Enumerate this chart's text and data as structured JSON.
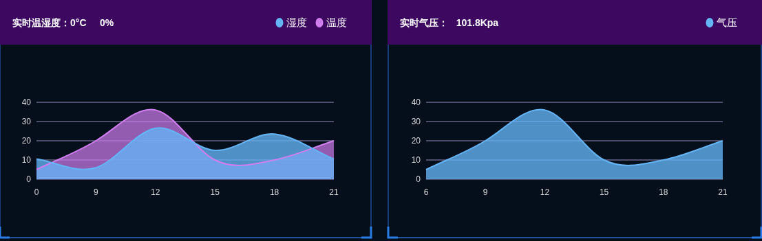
{
  "chart_data": [
    {
      "type": "area",
      "title": "实时温湿度：0°C     0%",
      "categories": [
        "0",
        "9",
        "12",
        "15",
        "18",
        "21"
      ],
      "ylim": [
        0,
        40
      ],
      "yticks": [
        0,
        10,
        20,
        30,
        40
      ],
      "grid": "y",
      "legend": "top right",
      "series": [
        {
          "name": "湿度",
          "color": "#64b5f6",
          "values": [
            10.5,
            6,
            26.5,
            15,
            23.5,
            10.5
          ]
        },
        {
          "name": "温度",
          "color": "#d17ef0",
          "values": [
            5,
            20,
            36,
            10,
            10,
            20
          ]
        }
      ]
    },
    {
      "type": "area",
      "title": "实时气压：   101.8Kpa",
      "categories": [
        "6",
        "9",
        "12",
        "15",
        "18",
        "21"
      ],
      "ylim": [
        0,
        40
      ],
      "yticks": [
        0,
        10,
        20,
        30,
        40
      ],
      "grid": "y",
      "legend": "top right",
      "series": [
        {
          "name": "气压",
          "color": "#64b5f6",
          "values": [
            5,
            20,
            36,
            10,
            10,
            20
          ]
        }
      ]
    }
  ]
}
